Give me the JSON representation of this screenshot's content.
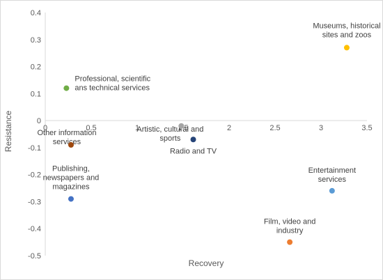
{
  "chart_data": {
    "type": "scatter",
    "title": "",
    "xlabel": "Recovery",
    "ylabel": "Resistance",
    "xlim": [
      0,
      3.5
    ],
    "ylim": [
      -0.5,
      0.4
    ],
    "x_ticks": [
      "0",
      "0.5",
      "1",
      "1.5",
      "2",
      "2.5",
      "3",
      "3.5"
    ],
    "y_ticks": [
      "0.4",
      "0.3",
      "0.2",
      "0.1",
      "0",
      "-0.1",
      "-0.2",
      "-0.3",
      "-0.4",
      "-0.5"
    ],
    "grid": false,
    "legend": "none",
    "points": [
      {
        "label_lines": [
          "Museums, historical",
          "sites and zoos"
        ],
        "x": 3.28,
        "y": 0.27,
        "color": "#FFC000"
      },
      {
        "label_lines": [
          "Professional, scientific",
          "ans technical services"
        ],
        "x": 0.23,
        "y": 0.12,
        "color": "#70AD47"
      },
      {
        "label_lines": [
          "Artistic, cultural and",
          "sports"
        ],
        "x": 1.48,
        "y": -0.02,
        "color": "#A5A5A5"
      },
      {
        "label_lines": [
          "Other information",
          "services"
        ],
        "x": 0.28,
        "y": -0.09,
        "color": "#9E480E"
      },
      {
        "label_lines": [
          "Radio and TV"
        ],
        "x": 1.61,
        "y": -0.07,
        "color": "#264478"
      },
      {
        "label_lines": [
          "Publishing,",
          "newspapers and",
          "magazines"
        ],
        "x": 0.28,
        "y": -0.29,
        "color": "#4472C4"
      },
      {
        "label_lines": [
          "Entertainment",
          "services"
        ],
        "x": 3.12,
        "y": -0.26,
        "color": "#5B9BD5"
      },
      {
        "label_lines": [
          "Film, video and",
          "industry"
        ],
        "x": 2.66,
        "y": -0.45,
        "color": "#ED7D31"
      }
    ]
  }
}
